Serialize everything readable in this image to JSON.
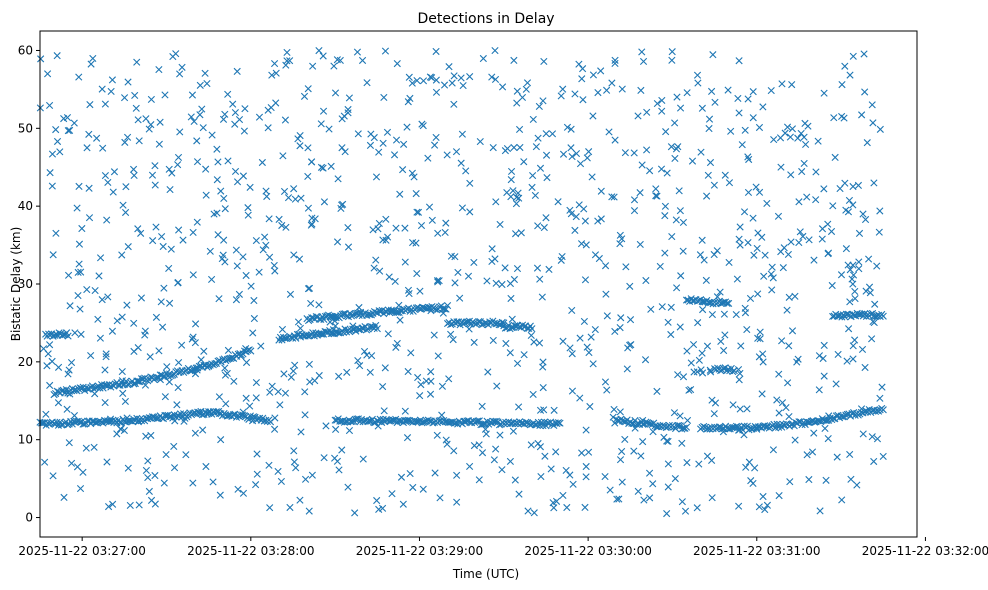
{
  "chart_data": {
    "type": "scatter",
    "title": "Detections in Delay",
    "xlabel": "Time (UTC)",
    "ylabel": "Bistatic Delay (km)",
    "marker": "x",
    "color": "#1f77b4",
    "grid": false,
    "x_range": [
      "2025-11-22 03:26:45",
      "2025-11-22 03:31:57"
    ],
    "ylim": [
      -2.5,
      62.5
    ],
    "x_ticks": [
      "2025-11-22 03:27:00",
      "2025-11-22 03:28:00",
      "2025-11-22 03:29:00",
      "2025-11-22 03:30:00",
      "2025-11-22 03:31:00",
      "2025-11-22 03:32:00"
    ],
    "y_ticks": [
      0,
      10,
      20,
      30,
      40,
      50,
      60
    ],
    "tracks": [
      {
        "points": [
          [
            "2025-11-22 03:26:50",
            16.0
          ],
          [
            "2025-11-22 03:27:20",
            17.5
          ],
          [
            "2025-11-22 03:27:45",
            19.5
          ],
          [
            "2025-11-22 03:28:00",
            21.5
          ]
        ]
      },
      {
        "points": [
          [
            "2025-11-22 03:28:10",
            23.0
          ],
          [
            "2025-11-22 03:28:45",
            24.5
          ]
        ]
      },
      {
        "points": [
          [
            "2025-11-22 03:28:20",
            25.5
          ],
          [
            "2025-11-22 03:28:50",
            26.5
          ],
          [
            "2025-11-22 03:29:10",
            27.0
          ]
        ]
      },
      {
        "points": [
          [
            "2025-11-22 03:29:10",
            25.0
          ],
          [
            "2025-11-22 03:29:30",
            25.0
          ]
        ]
      },
      {
        "points": [
          [
            "2025-11-22 03:29:30",
            24.5
          ],
          [
            "2025-11-22 03:29:40",
            24.5
          ]
        ]
      },
      {
        "points": [
          [
            "2025-11-22 03:26:45",
            12.0
          ],
          [
            "2025-11-22 03:27:20",
            12.5
          ],
          [
            "2025-11-22 03:27:45",
            13.5
          ]
        ]
      },
      {
        "points": [
          [
            "2025-11-22 03:27:45",
            13.5
          ],
          [
            "2025-11-22 03:28:07",
            12.5
          ]
        ]
      },
      {
        "points": [
          [
            "2025-11-22 03:28:30",
            12.5
          ],
          [
            "2025-11-22 03:29:50",
            12.0
          ]
        ]
      },
      {
        "points": [
          [
            "2025-11-22 03:30:10",
            12.5
          ],
          [
            "2025-11-22 03:30:35",
            11.5
          ]
        ]
      },
      {
        "points": [
          [
            "2025-11-22 03:30:40",
            11.5
          ],
          [
            "2025-11-22 03:31:00",
            11.5
          ],
          [
            "2025-11-22 03:31:20",
            12.3
          ],
          [
            "2025-11-22 03:31:45",
            14.0
          ]
        ]
      },
      {
        "points": [
          [
            "2025-11-22 03:26:47",
            23.5
          ],
          [
            "2025-11-22 03:26:55",
            23.5
          ]
        ]
      },
      {
        "points": [
          [
            "2025-11-22 03:30:35",
            28.0
          ],
          [
            "2025-11-22 03:30:50",
            27.5
          ]
        ]
      },
      {
        "points": [
          [
            "2025-11-22 03:30:45",
            19.0
          ],
          [
            "2025-11-22 03:30:52",
            19.0
          ]
        ]
      },
      {
        "points": [
          [
            "2025-11-22 03:31:27",
            26.0
          ],
          [
            "2025-11-22 03:31:45",
            26.0
          ]
        ]
      }
    ],
    "noise": {
      "x_range": [
        "2025-11-22 03:26:45",
        "2025-11-22 03:31:45"
      ],
      "y_range": [
        0.5,
        60.0
      ]
    }
  }
}
